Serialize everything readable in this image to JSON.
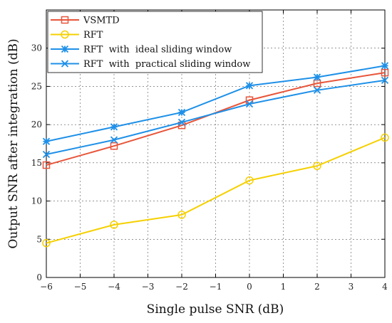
{
  "chart_data": {
    "type": "line",
    "xlabel": "Single pulse SNR (dB)",
    "ylabel": "Output SNR after integration (dB)",
    "xlim": [
      -6,
      4
    ],
    "ylim": [
      0,
      35
    ],
    "xticks": [
      -6,
      -5,
      -4,
      -3,
      -2,
      -1,
      0,
      1,
      2,
      3,
      4
    ],
    "yticks": [
      0,
      5,
      10,
      15,
      20,
      25,
      30
    ],
    "grid": true,
    "legend_position": "top-left",
    "x": [
      -6,
      -4,
      -2,
      0,
      2,
      4
    ],
    "series": [
      {
        "name": "VSMTD",
        "marker": "square",
        "color": "#e8553a",
        "values": [
          14.7,
          17.2,
          19.9,
          23.2,
          25.4,
          26.8
        ]
      },
      {
        "name": "RFT",
        "marker": "circle",
        "color": "#f5d000",
        "values": [
          4.5,
          6.9,
          8.2,
          12.7,
          14.6,
          18.3
        ]
      },
      {
        "name": "RFT  with  ideal sliding window",
        "marker": "star",
        "color": "#1e90e8",
        "values": [
          17.8,
          19.7,
          21.6,
          25.1,
          26.2,
          27.7
        ]
      },
      {
        "name": "RFT  with  practical sliding window",
        "marker": "cross",
        "color": "#1e90e8",
        "values": [
          16.1,
          18.0,
          20.3,
          22.7,
          24.5,
          25.8
        ]
      }
    ]
  }
}
